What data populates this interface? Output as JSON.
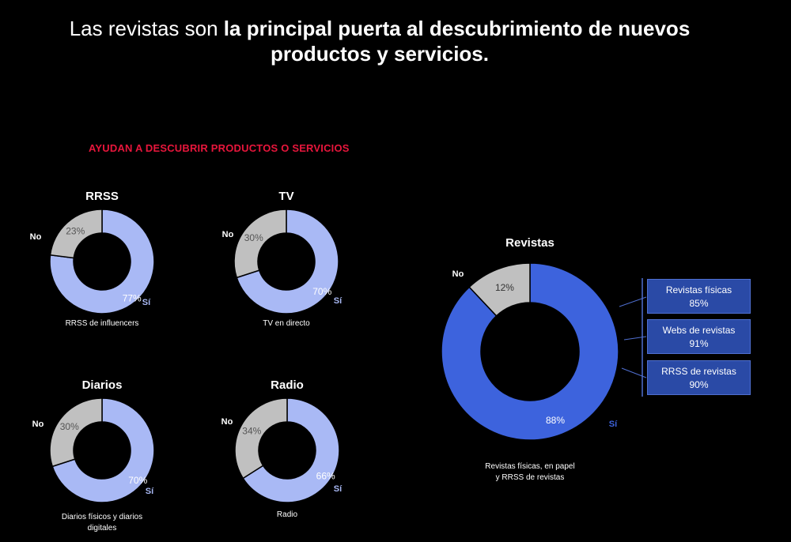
{
  "title": {
    "light": "Las revistas son ",
    "bold_line1": "la principal puerta al descubrimiento de nuevos",
    "bold_line2": "productos y servicios."
  },
  "subtitle": "AYUDAN A DESCUBRIR PRODUCTOS O SERVICIOS",
  "colors": {
    "subtitle": "#e8163c",
    "yes_small": "#a9b9f5",
    "yes_big": "#3d63dd",
    "no": "#c0c0c0",
    "yes_label_small": "#a9b9f5",
    "yes_label_big": "#3d63dd",
    "box_bg": "#2a4aa6"
  },
  "chart_data": [
    {
      "type": "pie",
      "title": "RRSS",
      "caption": "RRSS de influencers",
      "slices": [
        {
          "label": "Sí",
          "value": 77,
          "value_label": "77%"
        },
        {
          "label": "No",
          "value": 23,
          "value_label": "23%"
        }
      ]
    },
    {
      "type": "pie",
      "title": "TV",
      "caption": "TV en directo",
      "slices": [
        {
          "label": "Sí",
          "value": 70,
          "value_label": "70%"
        },
        {
          "label": "No",
          "value": 30,
          "value_label": "30%"
        }
      ]
    },
    {
      "type": "pie",
      "title": "Diarios",
      "caption": "Diarios físicos y diarios digitales",
      "slices": [
        {
          "label": "Sí",
          "value": 70,
          "value_label": "70%"
        },
        {
          "label": "No",
          "value": 30,
          "value_label": "30%"
        }
      ]
    },
    {
      "type": "pie",
      "title": "Radio",
      "caption": "Radio",
      "slices": [
        {
          "label": "Sí",
          "value": 66,
          "value_label": "66%"
        },
        {
          "label": "No",
          "value": 34,
          "value_label": "34%"
        }
      ]
    },
    {
      "type": "pie",
      "title": "Revistas",
      "caption": "Revistas físicas, en papel y RRSS de revistas",
      "slices": [
        {
          "label": "Sí",
          "value": 88,
          "value_label": "88%"
        },
        {
          "label": "No",
          "value": 12,
          "value_label": "12%"
        }
      ]
    }
  ],
  "breakdown": [
    {
      "label": "Revistas físicas",
      "value": "85%"
    },
    {
      "label": "Webs de revistas",
      "value": "91%"
    },
    {
      "label": "RRSS de revistas",
      "value": "90%"
    }
  ]
}
